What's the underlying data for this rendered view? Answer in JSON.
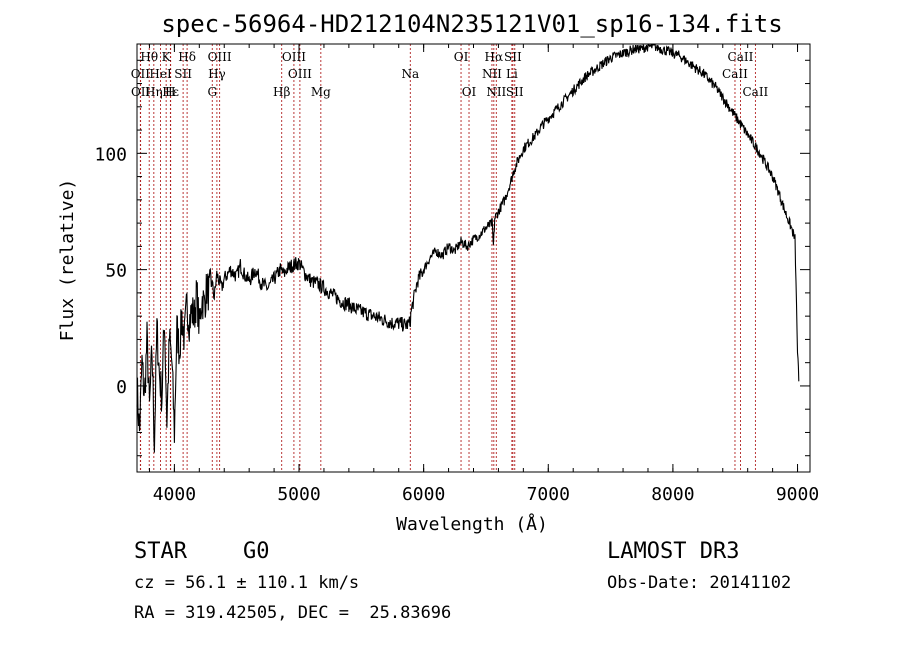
{
  "chart_data": {
    "type": "line",
    "title": "spec-56964-HD212104N235121V01_sp16-134.fits",
    "xlabel": "Wavelength (Å)",
    "ylabel": "Flux (relative)",
    "xlim": [
      3700,
      9100
    ],
    "ylim": [
      -37,
      147
    ],
    "xticks": [
      4000,
      5000,
      6000,
      7000,
      8000,
      9000
    ],
    "yticks": [
      0,
      50,
      100
    ],
    "grid": false,
    "series": [
      {
        "name": "flux",
        "x": [
          3700,
          3720,
          3740,
          3760,
          3780,
          3800,
          3820,
          3840,
          3860,
          3880,
          3900,
          3920,
          3940,
          3960,
          3980,
          4000,
          4020,
          4040,
          4060,
          4080,
          4100,
          4120,
          4140,
          4160,
          4180,
          4200,
          4220,
          4240,
          4260,
          4280,
          4300,
          4320,
          4340,
          4360,
          4380,
          4400,
          4450,
          4500,
          4530,
          4560,
          4600,
          4650,
          4700,
          4750,
          4800,
          4850,
          4880,
          4900,
          4950,
          5000,
          5050,
          5100,
          5150,
          5200,
          5250,
          5300,
          5350,
          5400,
          5450,
          5500,
          5550,
          5600,
          5650,
          5700,
          5750,
          5800,
          5850,
          5890,
          5900,
          5950,
          6000,
          6050,
          6100,
          6150,
          6200,
          6250,
          6300,
          6350,
          6400,
          6450,
          6500,
          6550,
          6560,
          6570,
          6600,
          6650,
          6700,
          6720,
          6750,
          6800,
          6850,
          6900,
          6950,
          7000,
          7050,
          7100,
          7150,
          7200,
          7250,
          7300,
          7350,
          7400,
          7450,
          7500,
          7550,
          7600,
          7650,
          7700,
          7750,
          7800,
          7850,
          7900,
          7950,
          8000,
          8050,
          8100,
          8150,
          8200,
          8250,
          8300,
          8350,
          8400,
          8450,
          8500,
          8550,
          8600,
          8650,
          8700,
          8750,
          8800,
          8850,
          8900,
          8950,
          8980,
          9000,
          9010
        ],
        "values": [
          0,
          -20,
          10,
          -5,
          20,
          -10,
          15,
          -25,
          25,
          5,
          -5,
          30,
          -15,
          20,
          10,
          -20,
          25,
          15,
          30,
          20,
          35,
          28,
          32,
          30,
          40,
          25,
          38,
          35,
          42,
          40,
          45,
          38,
          48,
          45,
          42,
          46,
          50,
          47,
          52,
          48,
          45,
          50,
          44,
          42,
          46,
          50,
          48,
          50,
          52,
          53,
          48,
          45,
          44,
          42,
          40,
          38,
          36,
          35,
          33,
          32,
          31,
          30,
          29,
          28,
          27,
          27,
          26,
          27,
          32,
          45,
          50,
          55,
          58,
          56,
          60,
          58,
          62,
          60,
          63,
          65,
          68,
          70,
          60,
          72,
          75,
          80,
          88,
          92,
          96,
          102,
          105,
          108,
          112,
          115,
          118,
          121,
          124,
          127,
          130,
          133,
          135,
          137,
          139,
          141,
          142,
          143,
          144,
          145,
          145,
          146,
          146,
          145,
          144,
          143,
          142,
          140,
          138,
          136,
          134,
          131,
          128,
          124,
          120,
          116,
          112,
          108,
          104,
          100,
          95,
          90,
          83,
          75,
          68,
          63,
          15,
          2
        ]
      }
    ],
    "lines": [
      {
        "name": "Hθ",
        "x": 3798,
        "row": 0
      },
      {
        "name": "OII",
        "x": 3727,
        "row": 1
      },
      {
        "name": "OII",
        "x": 3729,
        "row": 2
      },
      {
        "name": "K",
        "x": 3934,
        "row": 0
      },
      {
        "name": "HeI",
        "x": 3889,
        "row": 1
      },
      {
        "name": "Hε",
        "x": 3970,
        "row": 2
      },
      {
        "name": "Hη",
        "x": 3835,
        "row": 2
      },
      {
        "name": "H",
        "x": 3968,
        "row": 2
      },
      {
        "name": "Hδ",
        "x": 4102,
        "row": 0
      },
      {
        "name": "SII",
        "x": 4070,
        "row": 1
      },
      {
        "name": "OIII",
        "x": 4363,
        "row": 0
      },
      {
        "name": "Hγ",
        "x": 4341,
        "row": 1
      },
      {
        "name": "G",
        "x": 4304,
        "row": 2
      },
      {
        "name": "Hβ",
        "x": 4861,
        "row": 2
      },
      {
        "name": "OIII",
        "x": 4959,
        "row": 0
      },
      {
        "name": "OIII",
        "x": 5007,
        "row": 1
      },
      {
        "name": "Mg",
        "x": 5175,
        "row": 2
      },
      {
        "name": "Na",
        "x": 5893,
        "row": 1
      },
      {
        "name": "OI",
        "x": 6300,
        "row": 0
      },
      {
        "name": "OI",
        "x": 6364,
        "row": 2
      },
      {
        "name": "Hα",
        "x": 6563,
        "row": 0
      },
      {
        "name": "NII",
        "x": 6548,
        "row": 1
      },
      {
        "name": "NII",
        "x": 6583,
        "row": 2
      },
      {
        "name": "SII",
        "x": 6716,
        "row": 0
      },
      {
        "name": "Li",
        "x": 6708,
        "row": 1
      },
      {
        "name": "SII",
        "x": 6731,
        "row": 2
      },
      {
        "name": "CaII",
        "x": 8542,
        "row": 0
      },
      {
        "name": "CaII",
        "x": 8498,
        "row": 1
      },
      {
        "name": "CaII",
        "x": 8662,
        "row": 2
      }
    ]
  },
  "info": {
    "class": "STAR",
    "subclass": "G0",
    "survey": "LAMOST DR3",
    "redshift": "cz = 56.1 ± 110.1 km/s",
    "obs_date": "Obs-Date: 20141102",
    "coords": "RA = 319.42505, DEC =  25.83696"
  },
  "colors": {
    "line_marker": "#b22222",
    "spectrum": "#000000"
  }
}
